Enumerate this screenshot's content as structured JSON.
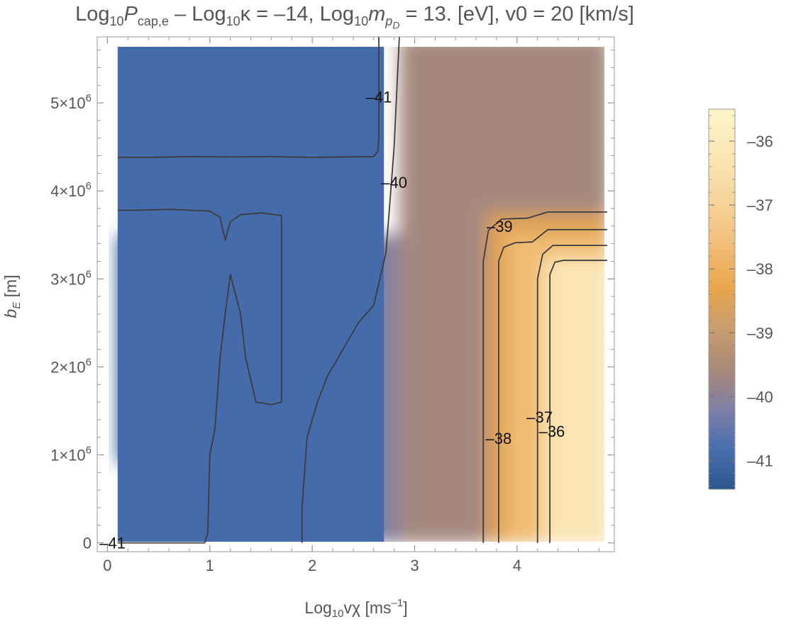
{
  "chart_data": {
    "type": "heatmap",
    "title": {
      "t1": "Log",
      "s1": "10",
      "t2": "P",
      "s2": "cap,e",
      "t3": " – Log",
      "s3": "10",
      "t4": "κ = –14, Log",
      "s4": "10",
      "t5": "m",
      "s5a": "p",
      "s5b": "D",
      "t6": " = 13. [eV], v0 = 20 [km/s]"
    },
    "xlabel": {
      "base": "Log",
      "sub": "10",
      "rest": "vχ [ms",
      "sup": "–1",
      "close": "]"
    },
    "ylabel": {
      "b": "b",
      "sub": "E",
      "rest": " [m]"
    },
    "xlim": [
      -0.1,
      4.95
    ],
    "ylim": [
      -100000,
      5750000
    ],
    "x_ticks": [
      "0",
      "1",
      "2",
      "3",
      "4"
    ],
    "x_tick_values": [
      0,
      1,
      2,
      3,
      4
    ],
    "y_ticks": [
      {
        "value": 0,
        "label": "0"
      },
      {
        "value": 1000000,
        "mant": "1",
        "exp": "6"
      },
      {
        "value": 2000000,
        "mant": "2",
        "exp": "6"
      },
      {
        "value": 3000000,
        "mant": "3",
        "exp": "6"
      },
      {
        "value": 4000000,
        "mant": "4",
        "exp": "6"
      },
      {
        "value": 5000000,
        "mant": "5",
        "exp": "6"
      }
    ],
    "times_sign": "×10",
    "colorbar": {
      "range": [
        -41.45,
        -35.5
      ],
      "ticks": [
        {
          "value": -36,
          "label": "–36"
        },
        {
          "value": -37,
          "label": "–37"
        },
        {
          "value": -38,
          "label": "–38"
        },
        {
          "value": -39,
          "label": "–39"
        },
        {
          "value": -40,
          "label": "–40"
        },
        {
          "value": -41,
          "label": "–41"
        }
      ],
      "stops": [
        {
          "value": -41.45,
          "color": "#2b568d"
        },
        {
          "value": -40.8,
          "color": "#4a6fb0"
        },
        {
          "value": -40.2,
          "color": "#7d7fa6"
        },
        {
          "value": -39.6,
          "color": "#a8897a"
        },
        {
          "value": -38.8,
          "color": "#d0a06a"
        },
        {
          "value": -38.3,
          "color": "#eaa54a"
        },
        {
          "value": -37.5,
          "color": "#f2c280"
        },
        {
          "value": -36.5,
          "color": "#f9e0ad"
        },
        {
          "value": -35.5,
          "color": "#fdf5c8"
        }
      ]
    },
    "regions": [
      {
        "x": [
          0.1,
          2.7
        ],
        "y": [
          0,
          5750000
        ],
        "value": -40.9
      },
      {
        "x": [
          0.1,
          1.05
        ],
        "y": [
          900000,
          3500000
        ],
        "value": -41.3
      },
      {
        "x": [
          1.6,
          2.0
        ],
        "y": [
          0,
          3500000
        ],
        "value": -40.3
      },
      {
        "x": [
          2.0,
          2.85
        ],
        "y": [
          0,
          3500000
        ],
        "value": -40.1
      },
      {
        "x": [
          2.85,
          4.9
        ],
        "y": [
          0,
          5750000
        ],
        "value": -39.65
      },
      {
        "x": [
          3.7,
          4.9
        ],
        "y": [
          0,
          3750000
        ],
        "value": -38.5
      },
      {
        "x": [
          3.9,
          4.9
        ],
        "y": [
          0,
          3500000
        ],
        "value": -37.7
      },
      {
        "x": [
          4.25,
          4.9
        ],
        "y": [
          0,
          3250000
        ],
        "value": -36.3
      }
    ],
    "contours": [
      {
        "level": -41,
        "points": [
          [
            0.1,
            4380000
          ],
          [
            0.4,
            4380000
          ],
          [
            0.8,
            4390000
          ],
          [
            1.2,
            4385000
          ],
          [
            1.6,
            4390000
          ],
          [
            2.0,
            4380000
          ],
          [
            2.6,
            4390000
          ],
          [
            2.64,
            4450000
          ],
          [
            2.65,
            4600000
          ],
          [
            2.65,
            5750000
          ]
        ]
      },
      {
        "level": -41,
        "points": [
          [
            0.1,
            3780000
          ],
          [
            0.3,
            3780000
          ],
          [
            0.6,
            3790000
          ],
          [
            1.0,
            3770000
          ],
          [
            1.1,
            3700000
          ],
          [
            1.15,
            3440000
          ],
          [
            1.2,
            3650000
          ],
          [
            1.3,
            3730000
          ],
          [
            1.5,
            3750000
          ],
          [
            1.7,
            3720000
          ],
          [
            1.7,
            1600000
          ],
          [
            1.6,
            1570000
          ],
          [
            1.45,
            1600000
          ],
          [
            1.35,
            2100000
          ],
          [
            1.3,
            2600000
          ],
          [
            1.2,
            3050000
          ],
          [
            1.15,
            2600000
          ],
          [
            1.1,
            2100000
          ],
          [
            1.05,
            1300000
          ],
          [
            1.0,
            1000000
          ],
          [
            0.98,
            120000
          ],
          [
            0.95,
            0
          ],
          [
            0.1,
            0
          ]
        ]
      },
      {
        "level": -40,
        "points": [
          [
            1.9,
            0
          ],
          [
            1.9,
            400000
          ],
          [
            1.95,
            1200000
          ],
          [
            2.05,
            1600000
          ],
          [
            2.15,
            1900000
          ],
          [
            2.3,
            2200000
          ],
          [
            2.45,
            2500000
          ],
          [
            2.6,
            2700000
          ],
          [
            2.72,
            3300000
          ],
          [
            2.76,
            3900000
          ],
          [
            2.8,
            4500000
          ],
          [
            2.85,
            5750000
          ]
        ]
      },
      {
        "level": -39,
        "points": [
          [
            3.67,
            0
          ],
          [
            3.67,
            3200000
          ],
          [
            3.72,
            3550000
          ],
          [
            3.85,
            3680000
          ],
          [
            4.1,
            3690000
          ],
          [
            4.3,
            3760000
          ],
          [
            4.88,
            3760000
          ]
        ]
      },
      {
        "level": -38,
        "points": [
          [
            3.82,
            0
          ],
          [
            3.82,
            3200000
          ],
          [
            3.87,
            3360000
          ],
          [
            3.98,
            3410000
          ],
          [
            4.15,
            3420000
          ],
          [
            4.3,
            3560000
          ],
          [
            4.88,
            3560000
          ]
        ]
      },
      {
        "level": -37,
        "points": [
          [
            4.2,
            0
          ],
          [
            4.2,
            3000000
          ],
          [
            4.25,
            3280000
          ],
          [
            4.35,
            3380000
          ],
          [
            4.88,
            3380000
          ]
        ]
      },
      {
        "level": -36,
        "points": [
          [
            4.32,
            0
          ],
          [
            4.32,
            3050000
          ],
          [
            4.37,
            3190000
          ],
          [
            4.45,
            3210000
          ],
          [
            4.88,
            3210000
          ]
        ]
      }
    ],
    "contour_labels": [
      {
        "text": "–41",
        "x": 2.65,
        "y": 5070000
      },
      {
        "text": "–40",
        "x": 2.8,
        "y": 4100000
      },
      {
        "text": "–39",
        "x": 3.83,
        "y": 3600000
      },
      {
        "text": "–38",
        "x": 3.82,
        "y": 1190000
      },
      {
        "text": "–37",
        "x": 4.22,
        "y": 1430000
      },
      {
        "text": "–36",
        "x": 4.34,
        "y": 1270000
      },
      {
        "text": "–41",
        "x": 0.05,
        "y": 0
      }
    ]
  }
}
